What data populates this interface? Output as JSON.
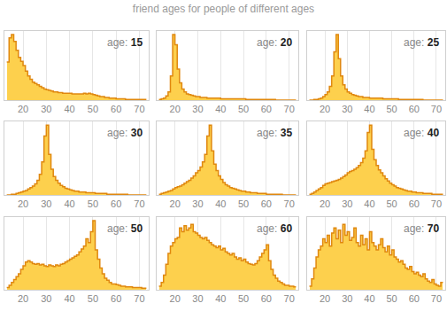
{
  "title": "friend ages for people of different ages",
  "chart_data": [
    {
      "type": "histogram",
      "annotation": "age: 15",
      "color": "#fdd04d",
      "grid": true,
      "tick_labels": "x",
      "xlim": [
        12,
        74
      ],
      "xticks": [
        20,
        30,
        40,
        50,
        60,
        70
      ],
      "ylim": [
        0,
        100
      ],
      "bins": [
        13,
        14,
        15,
        16,
        17,
        18,
        19,
        20,
        21,
        22,
        23,
        24,
        25,
        26,
        27,
        28,
        29,
        30,
        31,
        32,
        33,
        34,
        35,
        36,
        37,
        38,
        39,
        40,
        41,
        42,
        43,
        44,
        45,
        46,
        47,
        48,
        49,
        50,
        51,
        52,
        53,
        54,
        55,
        56,
        57,
        58,
        59,
        60,
        61,
        62,
        63,
        64,
        65,
        66,
        67,
        68,
        69,
        70,
        71,
        72,
        73
      ],
      "values": [
        55,
        90,
        95,
        85,
        72,
        62,
        56,
        50,
        42,
        35,
        30,
        26,
        24,
        22,
        20,
        18,
        16,
        15,
        14,
        13,
        12,
        12,
        11,
        11,
        10,
        10,
        10,
        10,
        9,
        9,
        9,
        9,
        9,
        10,
        9,
        10,
        9,
        8,
        7,
        6,
        5,
        5,
        4,
        4,
        3,
        3,
        3,
        2,
        2,
        2,
        2,
        1,
        1,
        1,
        1,
        1,
        1,
        1,
        1,
        1
      ]
    },
    {
      "type": "histogram",
      "annotation": "age: 20",
      "color": "#fdd04d",
      "grid": true,
      "tick_labels": "x",
      "xlim": [
        12,
        74
      ],
      "xticks": [
        20,
        30,
        40,
        50,
        60,
        70
      ],
      "ylim": [
        0,
        100
      ],
      "bins": [
        13,
        14,
        15,
        16,
        17,
        18,
        19,
        20,
        21,
        22,
        23,
        24,
        25,
        26,
        27,
        28,
        29,
        30,
        31,
        32,
        33,
        34,
        35,
        36,
        37,
        38,
        39,
        40,
        41,
        42,
        43,
        44,
        45,
        46,
        47,
        48,
        49,
        50,
        51,
        52,
        53,
        54,
        55,
        56,
        57,
        58,
        59,
        60,
        61,
        62,
        63,
        64,
        65,
        66,
        67,
        68,
        69,
        70,
        71,
        72,
        73
      ],
      "values": [
        1,
        2,
        3,
        6,
        12,
        35,
        95,
        80,
        45,
        25,
        16,
        12,
        9,
        8,
        7,
        6,
        5,
        5,
        4,
        4,
        4,
        3,
        3,
        3,
        3,
        3,
        3,
        2,
        2,
        2,
        2,
        2,
        2,
        2,
        2,
        2,
        2,
        2,
        1,
        1,
        1,
        1,
        1,
        1,
        1,
        1,
        1,
        1,
        1,
        1,
        1,
        0,
        0,
        0,
        0,
        0,
        0,
        0,
        0,
        0
      ]
    },
    {
      "type": "histogram",
      "annotation": "age: 25",
      "color": "#fdd04d",
      "grid": true,
      "tick_labels": "x",
      "xlim": [
        12,
        74
      ],
      "xticks": [
        20,
        30,
        40,
        50,
        60,
        70
      ],
      "ylim": [
        0,
        100
      ],
      "bins": [
        13,
        14,
        15,
        16,
        17,
        18,
        19,
        20,
        21,
        22,
        23,
        24,
        25,
        26,
        27,
        28,
        29,
        30,
        31,
        32,
        33,
        34,
        35,
        36,
        37,
        38,
        39,
        40,
        41,
        42,
        43,
        44,
        45,
        46,
        47,
        48,
        49,
        50,
        51,
        52,
        53,
        54,
        55,
        56,
        57,
        58,
        59,
        60,
        61,
        62,
        63,
        64,
        65,
        66,
        67,
        68,
        69,
        70,
        71,
        72,
        73
      ],
      "values": [
        0,
        0,
        1,
        1,
        2,
        3,
        5,
        8,
        12,
        20,
        35,
        70,
        95,
        60,
        35,
        22,
        16,
        12,
        10,
        8,
        7,
        6,
        5,
        5,
        4,
        4,
        4,
        3,
        3,
        3,
        3,
        3,
        3,
        2,
        2,
        2,
        2,
        2,
        2,
        2,
        1,
        1,
        1,
        1,
        1,
        1,
        1,
        1,
        1,
        1,
        1,
        0,
        0,
        0,
        0,
        0,
        0,
        0,
        0,
        0
      ]
    },
    {
      "type": "histogram",
      "annotation": "age: 30",
      "color": "#fdd04d",
      "grid": true,
      "tick_labels": "x",
      "xlim": [
        12,
        74
      ],
      "xticks": [
        20,
        30,
        40,
        50,
        60,
        70
      ],
      "ylim": [
        0,
        100
      ],
      "bins": [
        13,
        14,
        15,
        16,
        17,
        18,
        19,
        20,
        21,
        22,
        23,
        24,
        25,
        26,
        27,
        28,
        29,
        30,
        31,
        32,
        33,
        34,
        35,
        36,
        37,
        38,
        39,
        40,
        41,
        42,
        43,
        44,
        45,
        46,
        47,
        48,
        49,
        50,
        51,
        52,
        53,
        54,
        55,
        56,
        57,
        58,
        59,
        60,
        61,
        62,
        63,
        64,
        65,
        66,
        67,
        68,
        69,
        70,
        71,
        72,
        73
      ],
      "values": [
        0,
        0,
        1,
        1,
        2,
        3,
        4,
        5,
        6,
        8,
        10,
        12,
        15,
        20,
        28,
        45,
        80,
        95,
        55,
        35,
        25,
        20,
        16,
        13,
        11,
        9,
        8,
        7,
        6,
        5,
        5,
        4,
        4,
        4,
        3,
        3,
        3,
        3,
        2,
        2,
        2,
        2,
        2,
        1,
        1,
        1,
        1,
        1,
        1,
        1,
        1,
        1,
        0,
        0,
        0,
        0,
        0,
        0,
        0,
        0
      ]
    },
    {
      "type": "histogram",
      "annotation": "age: 35",
      "color": "#fdd04d",
      "grid": true,
      "tick_labels": "x",
      "xlim": [
        12,
        74
      ],
      "xticks": [
        20,
        30,
        40,
        50,
        60,
        70
      ],
      "ylim": [
        0,
        100
      ],
      "bins": [
        13,
        14,
        15,
        16,
        17,
        18,
        19,
        20,
        21,
        22,
        23,
        24,
        25,
        26,
        27,
        28,
        29,
        30,
        31,
        32,
        33,
        34,
        35,
        36,
        37,
        38,
        39,
        40,
        41,
        42,
        43,
        44,
        45,
        46,
        47,
        48,
        49,
        50,
        51,
        52,
        53,
        54,
        55,
        56,
        57,
        58,
        59,
        60,
        61,
        62,
        63,
        64,
        65,
        66,
        67,
        68,
        69,
        70,
        71,
        72,
        73
      ],
      "values": [
        1,
        2,
        3,
        4,
        5,
        6,
        8,
        10,
        11,
        12,
        14,
        16,
        18,
        20,
        23,
        26,
        30,
        33,
        38,
        45,
        55,
        80,
        95,
        60,
        42,
        33,
        26,
        21,
        17,
        14,
        12,
        10,
        9,
        8,
        7,
        6,
        5,
        5,
        4,
        4,
        3,
        3,
        3,
        2,
        2,
        2,
        2,
        1,
        1,
        1,
        1,
        1,
        1,
        1,
        0,
        0,
        0,
        0,
        0,
        0
      ]
    },
    {
      "type": "histogram",
      "annotation": "age: 40",
      "color": "#fdd04d",
      "grid": true,
      "tick_labels": "x",
      "xlim": [
        12,
        74
      ],
      "xticks": [
        20,
        30,
        40,
        50,
        60,
        70
      ],
      "ylim": [
        0,
        100
      ],
      "bins": [
        13,
        14,
        15,
        16,
        17,
        18,
        19,
        20,
        21,
        22,
        23,
        24,
        25,
        26,
        27,
        28,
        29,
        30,
        31,
        32,
        33,
        34,
        35,
        36,
        37,
        38,
        39,
        40,
        41,
        42,
        43,
        44,
        45,
        46,
        47,
        48,
        49,
        50,
        51,
        52,
        53,
        54,
        55,
        56,
        57,
        58,
        59,
        60,
        61,
        62,
        63,
        64,
        65,
        66,
        67,
        68,
        69,
        70,
        71,
        72,
        73
      ],
      "values": [
        1,
        2,
        4,
        6,
        8,
        10,
        13,
        15,
        16,
        17,
        18,
        19,
        20,
        21,
        23,
        25,
        27,
        30,
        32,
        33,
        35,
        37,
        40,
        44,
        50,
        60,
        85,
        95,
        62,
        48,
        40,
        34,
        30,
        26,
        22,
        19,
        16,
        14,
        12,
        10,
        9,
        8,
        7,
        6,
        5,
        5,
        4,
        4,
        3,
        3,
        3,
        2,
        2,
        2,
        2,
        1,
        1,
        1,
        1,
        1
      ]
    },
    {
      "type": "histogram",
      "annotation": "age: 50",
      "color": "#fdd04d",
      "grid": true,
      "tick_labels": "x",
      "xlim": [
        12,
        74
      ],
      "xticks": [
        20,
        30,
        40,
        50,
        60,
        70
      ],
      "ylim": [
        0,
        100
      ],
      "bins": [
        13,
        14,
        15,
        16,
        17,
        18,
        19,
        20,
        21,
        22,
        23,
        24,
        25,
        26,
        27,
        28,
        29,
        30,
        31,
        32,
        33,
        34,
        35,
        36,
        37,
        38,
        39,
        40,
        41,
        42,
        43,
        44,
        45,
        46,
        47,
        48,
        49,
        50,
        51,
        52,
        53,
        54,
        55,
        56,
        57,
        58,
        59,
        60,
        61,
        62,
        63,
        64,
        65,
        66,
        67,
        68,
        69,
        70,
        71,
        72,
        73
      ],
      "values": [
        3,
        6,
        10,
        14,
        18,
        22,
        28,
        33,
        38,
        40,
        38,
        36,
        35,
        36,
        34,
        35,
        33,
        32,
        34,
        33,
        32,
        34,
        33,
        35,
        36,
        38,
        40,
        42,
        44,
        46,
        48,
        52,
        56,
        60,
        70,
        65,
        80,
        95,
        55,
        42,
        30,
        22,
        16,
        13,
        10,
        8,
        8,
        7,
        6,
        5,
        5,
        4,
        4,
        4,
        3,
        3,
        3,
        3,
        2,
        2
      ]
    },
    {
      "type": "histogram",
      "annotation": "age: 60",
      "color": "#fdd04d",
      "grid": true,
      "tick_labels": "x",
      "xlim": [
        12,
        74
      ],
      "xticks": [
        20,
        30,
        40,
        50,
        60,
        70
      ],
      "ylim": [
        0,
        100
      ],
      "bins": [
        13,
        14,
        15,
        16,
        17,
        18,
        19,
        20,
        21,
        22,
        23,
        24,
        25,
        26,
        27,
        28,
        29,
        30,
        31,
        32,
        33,
        34,
        35,
        36,
        37,
        38,
        39,
        40,
        41,
        42,
        43,
        44,
        45,
        46,
        47,
        48,
        49,
        50,
        51,
        52,
        53,
        54,
        55,
        56,
        57,
        58,
        59,
        60,
        61,
        62,
        63,
        64,
        65,
        66,
        67,
        68,
        69,
        70,
        71,
        72,
        73
      ],
      "values": [
        5,
        10,
        20,
        35,
        50,
        60,
        65,
        70,
        72,
        85,
        80,
        88,
        82,
        85,
        90,
        80,
        78,
        75,
        72,
        70,
        72,
        68,
        65,
        62,
        60,
        58,
        60,
        55,
        57,
        52,
        50,
        48,
        50,
        45,
        42,
        44,
        40,
        42,
        38,
        36,
        35,
        34,
        36,
        40,
        45,
        50,
        55,
        62,
        40,
        28,
        20,
        16,
        12,
        10,
        8,
        6,
        6,
        5,
        5,
        4
      ]
    },
    {
      "type": "histogram",
      "annotation": "age: 70",
      "color": "#fdd04d",
      "grid": true,
      "tick_labels": "x",
      "xlim": [
        12,
        74
      ],
      "xticks": [
        20,
        30,
        40,
        50,
        60,
        70
      ],
      "ylim": [
        0,
        100
      ],
      "bins": [
        13,
        14,
        15,
        16,
        17,
        18,
        19,
        20,
        21,
        22,
        23,
        24,
        25,
        26,
        27,
        28,
        29,
        30,
        31,
        32,
        33,
        34,
        35,
        36,
        37,
        38,
        39,
        40,
        41,
        42,
        43,
        44,
        45,
        46,
        47,
        48,
        49,
        50,
        51,
        52,
        53,
        54,
        55,
        56,
        57,
        58,
        59,
        60,
        61,
        62,
        63,
        64,
        65,
        66,
        67,
        68,
        69,
        70,
        71,
        72,
        73
      ],
      "values": [
        5,
        15,
        30,
        45,
        55,
        60,
        70,
        65,
        75,
        60,
        78,
        85,
        70,
        82,
        65,
        90,
        75,
        80,
        68,
        72,
        85,
        65,
        60,
        75,
        62,
        70,
        55,
        80,
        65,
        60,
        55,
        62,
        70,
        58,
        52,
        60,
        48,
        55,
        45,
        42,
        38,
        40,
        35,
        30,
        28,
        32,
        25,
        22,
        24,
        20,
        18,
        22,
        15,
        12,
        10,
        14,
        8,
        6,
        5,
        10
      ]
    }
  ]
}
